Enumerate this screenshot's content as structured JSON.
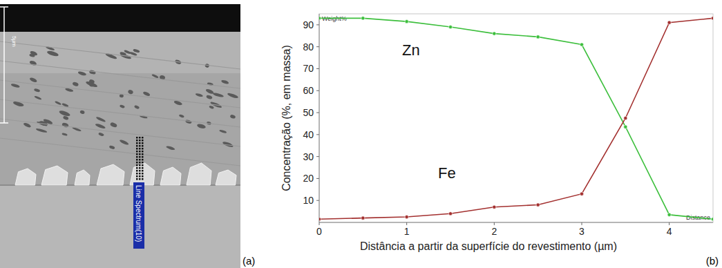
{
  "chart_data": {
    "type": "line",
    "panel_label": "(b)",
    "x_label": "Distância a partir da superfície do revestimento (µm)",
    "y_label": "Concentração (%, em massa)",
    "y_axis_note": "Weight%",
    "x_axis_note": "Distance",
    "x": [
      0,
      0.5,
      1,
      1.5,
      2,
      2.5,
      3,
      3.5,
      4,
      4.5
    ],
    "series": [
      {
        "name": "Zn",
        "color": "#3dbf3d",
        "marker": "circle",
        "line_style": "solid",
        "values": [
          93,
          93,
          91.5,
          89,
          86,
          84.5,
          81,
          43.5,
          3.5,
          1.5
        ]
      },
      {
        "name": "Fe",
        "color": "#a3302f",
        "marker": "circle",
        "line_style": "solid",
        "values": [
          1.5,
          2,
          2.5,
          4,
          7,
          8,
          13,
          47.5,
          91,
          93
        ]
      }
    ],
    "xlim": [
      0,
      4.5
    ],
    "xticks": [
      0,
      1,
      2,
      3,
      4
    ],
    "ylim": [
      0,
      95
    ],
    "yticks": [
      10,
      20,
      30,
      40,
      50,
      60,
      70,
      80,
      90
    ],
    "grid": false
  },
  "micrograph": {
    "panel_label": "(a)",
    "scale_bar_label": "5µm",
    "line_scan_label": "Line Spectrum(10)"
  }
}
